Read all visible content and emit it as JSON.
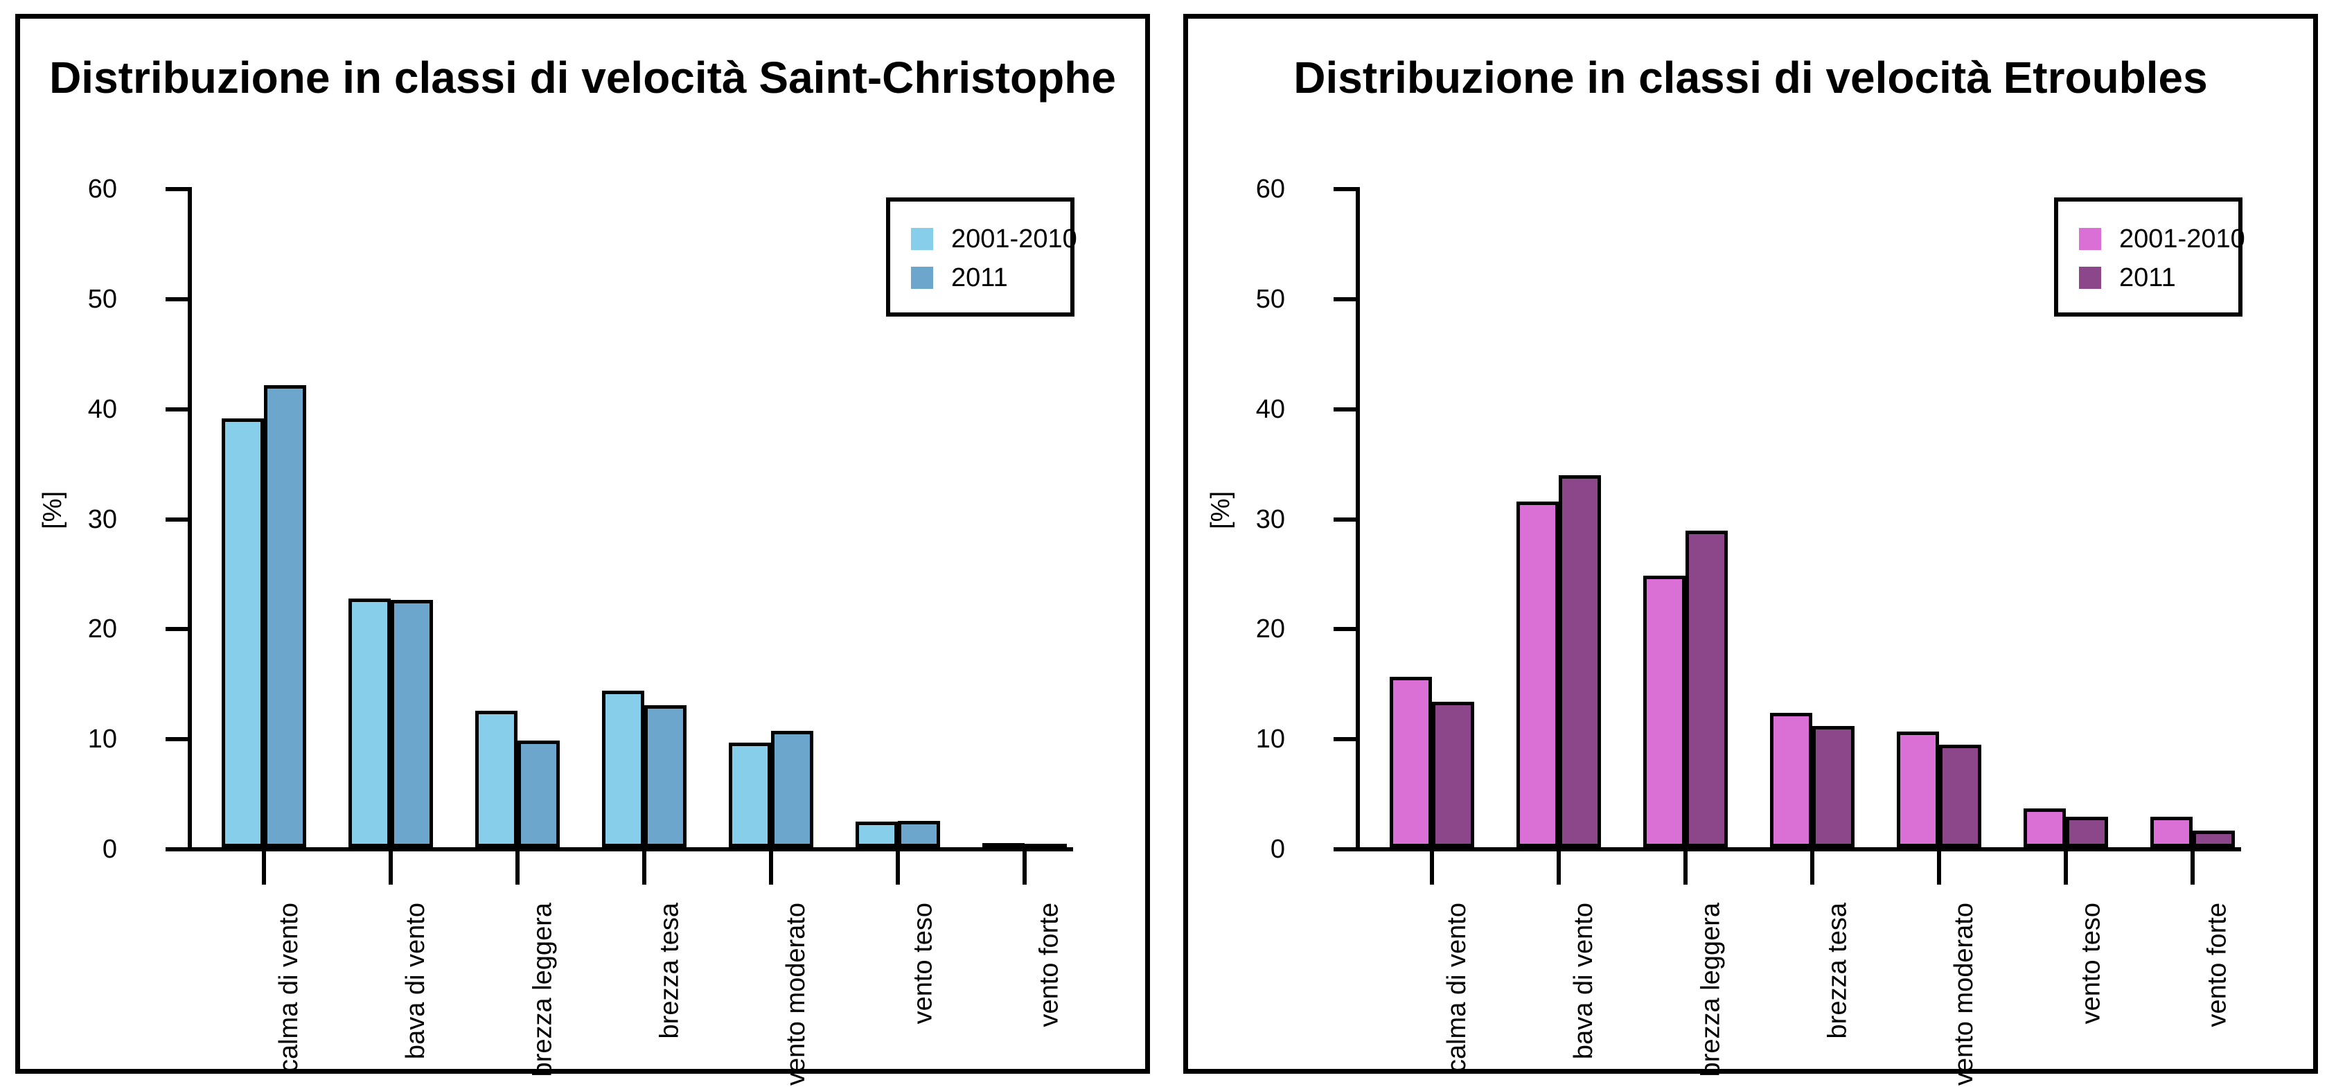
{
  "page": {
    "background": "#ffffff",
    "text_color": "#000000"
  },
  "chart_data": [
    {
      "type": "bar",
      "title": "Distribuzione in classi di velocità Saint-Christophe",
      "xlabel": "",
      "ylabel": "[%]",
      "ylim": [
        0,
        60
      ],
      "yticks": [
        0,
        10,
        20,
        30,
        40,
        50,
        60
      ],
      "grid": false,
      "legend_position": "top-right",
      "categories": [
        "calma di vento",
        "bava di vento",
        "brezza leggera",
        "brezza tesa",
        "vento moderato",
        "vento teso",
        "vento forte"
      ],
      "series": [
        {
          "name": "2001-2010",
          "color": "#87CEEB",
          "values": [
            39.0,
            22.6,
            12.4,
            14.2,
            9.5,
            2.3,
            0.4
          ]
        },
        {
          "name": "2011",
          "color": "#6CA6CD",
          "values": [
            42.0,
            22.5,
            9.7,
            12.9,
            10.6,
            2.4,
            0.3
          ]
        }
      ]
    },
    {
      "type": "bar",
      "title": "Distribuzione in classi di velocità Etroubles",
      "xlabel": "",
      "ylabel": "[%]",
      "ylim": [
        0,
        60
      ],
      "yticks": [
        0,
        10,
        20,
        30,
        40,
        50,
        60
      ],
      "grid": false,
      "legend_position": "top-right",
      "categories": [
        "calma di vento",
        "bava di vento",
        "brezza leggera",
        "brezza tesa",
        "vento moderato",
        "vento teso",
        "vento forte"
      ],
      "series": [
        {
          "name": "2001-2010",
          "color": "#DA70D6",
          "values": [
            15.5,
            31.4,
            24.7,
            12.2,
            10.5,
            3.5,
            2.8
          ]
        },
        {
          "name": "2011",
          "color": "#8B4789",
          "values": [
            13.2,
            33.8,
            28.8,
            11.0,
            9.3,
            2.8,
            1.5
          ]
        }
      ]
    }
  ]
}
